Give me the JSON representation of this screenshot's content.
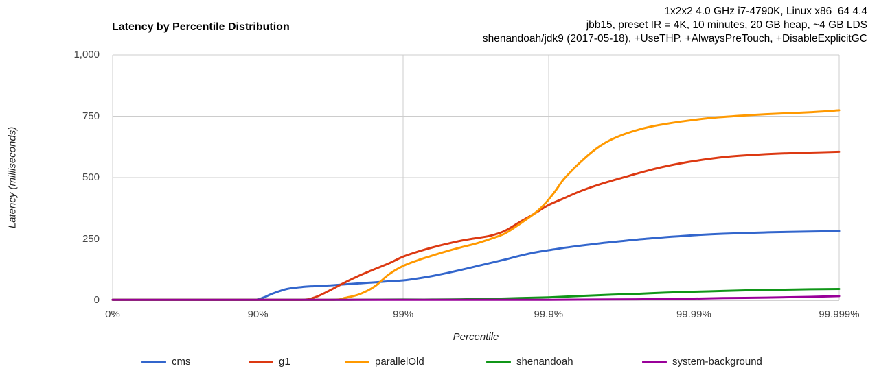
{
  "header": {
    "lines": [
      "1x2x2 4.0 GHz i7-4790K, Linux x86_64 4.4",
      "jbb15, preset IR = 4K, 10 minutes, 20 GB heap, ~4 GB LDS",
      "shenandoah/jdk9 (2017-05-18), +UseTHP, +AlwaysPreTouch, +DisableExplicitGC"
    ]
  },
  "chart_data": {
    "type": "line",
    "title": "Latency by Percentile Distribution",
    "xlabel": "Percentile",
    "ylabel": "Latency (milliseconds)",
    "grid": true,
    "legend_position": "bottom",
    "x_axis": {
      "kind": "percentile-nines",
      "note": "x positions are in 'nines' units: 0=0%, 1=90%, 2=99%, 3=99.9%, 4=99.99%, 5=99.999%",
      "ticks": [
        {
          "pos": 0,
          "label": "0%"
        },
        {
          "pos": 1,
          "label": "90%"
        },
        {
          "pos": 2,
          "label": "99%"
        },
        {
          "pos": 3,
          "label": "99.9%"
        },
        {
          "pos": 4,
          "label": "99.99%"
        },
        {
          "pos": 5,
          "label": "99.999%"
        }
      ]
    },
    "y_axis": {
      "min": 0,
      "max": 1000,
      "ticks": [
        {
          "value": 0,
          "label": "0"
        },
        {
          "value": 250,
          "label": "250"
        },
        {
          "value": 500,
          "label": "500"
        },
        {
          "value": 750,
          "label": "750"
        },
        {
          "value": 1000,
          "label": "1,000"
        }
      ]
    },
    "grid_color": "#cccccc",
    "baseline_color": "#a6a6a6",
    "series": [
      {
        "name": "cms",
        "color": "#3366cc",
        "points": [
          [
            0,
            2
          ],
          [
            0.5,
            2
          ],
          [
            0.95,
            2
          ],
          [
            1.0,
            4
          ],
          [
            1.05,
            14
          ],
          [
            1.1,
            27
          ],
          [
            1.2,
            46
          ],
          [
            1.3,
            54
          ],
          [
            1.4,
            58
          ],
          [
            1.5,
            61
          ],
          [
            1.6,
            65
          ],
          [
            1.7,
            69
          ],
          [
            1.8,
            73
          ],
          [
            1.9,
            77
          ],
          [
            2.0,
            81
          ],
          [
            2.1,
            89
          ],
          [
            2.2,
            99
          ],
          [
            2.3,
            111
          ],
          [
            2.4,
            124
          ],
          [
            2.5,
            138
          ],
          [
            2.6,
            152
          ],
          [
            2.7,
            166
          ],
          [
            2.8,
            181
          ],
          [
            2.9,
            194
          ],
          [
            3.0,
            204
          ],
          [
            3.1,
            213
          ],
          [
            3.2,
            221
          ],
          [
            3.3,
            228
          ],
          [
            3.4,
            235
          ],
          [
            3.5,
            241
          ],
          [
            3.6,
            247
          ],
          [
            3.7,
            252
          ],
          [
            3.8,
            257
          ],
          [
            3.9,
            261
          ],
          [
            4.0,
            265
          ],
          [
            4.2,
            271
          ],
          [
            4.4,
            275
          ],
          [
            4.6,
            278
          ],
          [
            4.8,
            280
          ],
          [
            5.0,
            282
          ]
        ]
      },
      {
        "name": "g1",
        "color": "#dc3912",
        "points": [
          [
            0,
            2
          ],
          [
            0.5,
            2
          ],
          [
            1.0,
            2
          ],
          [
            1.3,
            2
          ],
          [
            1.4,
            14
          ],
          [
            1.5,
            42
          ],
          [
            1.6,
            73
          ],
          [
            1.7,
            101
          ],
          [
            1.8,
            126
          ],
          [
            1.9,
            150
          ],
          [
            2.0,
            178
          ],
          [
            2.1,
            198
          ],
          [
            2.2,
            215
          ],
          [
            2.3,
            230
          ],
          [
            2.4,
            243
          ],
          [
            2.5,
            253
          ],
          [
            2.6,
            263
          ],
          [
            2.7,
            283
          ],
          [
            2.8,
            318
          ],
          [
            2.9,
            352
          ],
          [
            3.0,
            388
          ],
          [
            3.1,
            414
          ],
          [
            3.2,
            440
          ],
          [
            3.3,
            462
          ],
          [
            3.4,
            481
          ],
          [
            3.5,
            498
          ],
          [
            3.6,
            515
          ],
          [
            3.7,
            531
          ],
          [
            3.8,
            545
          ],
          [
            3.9,
            557
          ],
          [
            4.0,
            567
          ],
          [
            4.2,
            583
          ],
          [
            4.4,
            592
          ],
          [
            4.6,
            598
          ],
          [
            4.8,
            602
          ],
          [
            5.0,
            605
          ]
        ]
      },
      {
        "name": "parallelOld",
        "color": "#ff9900",
        "points": [
          [
            0,
            2
          ],
          [
            0.5,
            2
          ],
          [
            1.0,
            2
          ],
          [
            1.5,
            2
          ],
          [
            1.6,
            10
          ],
          [
            1.7,
            25
          ],
          [
            1.8,
            55
          ],
          [
            1.9,
            105
          ],
          [
            2.0,
            140
          ],
          [
            2.1,
            163
          ],
          [
            2.2,
            182
          ],
          [
            2.3,
            200
          ],
          [
            2.4,
            216
          ],
          [
            2.5,
            231
          ],
          [
            2.6,
            250
          ],
          [
            2.7,
            272
          ],
          [
            2.8,
            310
          ],
          [
            2.9,
            352
          ],
          [
            2.95,
            378
          ],
          [
            3.0,
            410
          ],
          [
            3.05,
            448
          ],
          [
            3.1,
            490
          ],
          [
            3.15,
            522
          ],
          [
            3.2,
            552
          ],
          [
            3.3,
            605
          ],
          [
            3.4,
            645
          ],
          [
            3.5,
            672
          ],
          [
            3.6,
            692
          ],
          [
            3.7,
            707
          ],
          [
            3.8,
            718
          ],
          [
            3.9,
            727
          ],
          [
            4.0,
            735
          ],
          [
            4.1,
            742
          ],
          [
            4.2,
            747
          ],
          [
            4.4,
            755
          ],
          [
            4.6,
            761
          ],
          [
            4.8,
            766
          ],
          [
            5.0,
            774
          ]
        ]
      },
      {
        "name": "shenandoah",
        "color": "#109618",
        "points": [
          [
            0,
            2
          ],
          [
            0.5,
            2
          ],
          [
            1.0,
            2
          ],
          [
            1.5,
            2
          ],
          [
            2.0,
            3
          ],
          [
            2.2,
            3
          ],
          [
            2.4,
            4
          ],
          [
            2.6,
            6
          ],
          [
            2.8,
            9
          ],
          [
            3.0,
            12
          ],
          [
            3.2,
            17
          ],
          [
            3.4,
            22
          ],
          [
            3.6,
            26
          ],
          [
            3.8,
            31
          ],
          [
            4.0,
            35
          ],
          [
            4.2,
            38
          ],
          [
            4.4,
            41
          ],
          [
            4.6,
            43
          ],
          [
            4.8,
            45
          ],
          [
            5.0,
            46
          ]
        ]
      },
      {
        "name": "system-background",
        "color": "#990099",
        "points": [
          [
            0,
            2
          ],
          [
            0.5,
            2
          ],
          [
            1.0,
            2
          ],
          [
            1.5,
            2
          ],
          [
            2.0,
            2
          ],
          [
            2.5,
            2
          ],
          [
            3.0,
            2
          ],
          [
            3.3,
            3
          ],
          [
            3.6,
            4
          ],
          [
            3.9,
            6
          ],
          [
            4.2,
            9
          ],
          [
            4.5,
            11
          ],
          [
            4.8,
            14
          ],
          [
            5.0,
            17
          ]
        ]
      }
    ]
  }
}
